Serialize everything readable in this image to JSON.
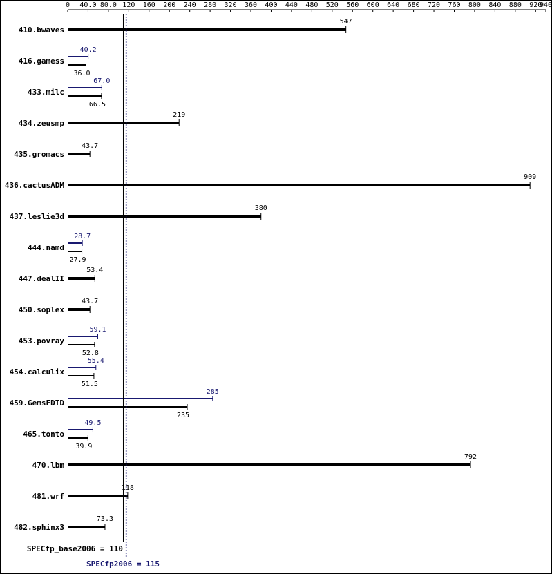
{
  "chart_data": {
    "type": "bar",
    "orientation": "horizontal",
    "categories": [
      "410.bwaves",
      "416.gamess",
      "433.milc",
      "434.zeusmp",
      "435.gromacs",
      "436.cactusADM",
      "437.leslie3d",
      "444.namd",
      "447.dealII",
      "450.soplex",
      "453.povray",
      "454.calculix",
      "459.GemsFDTD",
      "465.tonto",
      "470.lbm",
      "481.wrf",
      "482.sphinx3"
    ],
    "series": [
      {
        "color": "#000000",
        "values": [
          547,
          36.0,
          66.5,
          219,
          43.7,
          909,
          380,
          27.9,
          53.4,
          43.7,
          52.8,
          51.5,
          235,
          39.9,
          792,
          118,
          73.3
        ],
        "value_labels": [
          "547",
          "36.0",
          "66.5",
          "219",
          "43.7",
          "909",
          "380",
          "27.9",
          "53.4",
          "43.7",
          "52.8",
          "51.5",
          "235",
          "39.9",
          "792",
          "118",
          "73.3"
        ]
      },
      {
        "color": "#191970",
        "values": [
          null,
          40.2,
          67.0,
          null,
          null,
          null,
          null,
          28.7,
          null,
          null,
          59.1,
          55.4,
          285,
          49.5,
          null,
          null,
          null
        ],
        "value_labels": [
          null,
          "40.2",
          "67.0",
          null,
          null,
          null,
          null,
          "28.7",
          null,
          null,
          "59.1",
          "55.4",
          "285",
          "49.5",
          null,
          null,
          null
        ]
      }
    ],
    "reference_lines": [
      {
        "label": "SPECfp_base2006 = 110",
        "value": 110,
        "color": "#000000"
      },
      {
        "label": "SPECfp2006 = 115",
        "value": 115,
        "color": "#191970"
      }
    ],
    "xlim": [
      0,
      940
    ],
    "xticks": [
      0,
      {
        "value": 40,
        "label": "40.0"
      },
      {
        "value": 80,
        "label": "80.0"
      },
      120,
      160,
      200,
      240,
      280,
      320,
      360,
      400,
      440,
      480,
      520,
      560,
      600,
      640,
      680,
      720,
      760,
      800,
      840,
      880,
      920,
      940
    ]
  }
}
